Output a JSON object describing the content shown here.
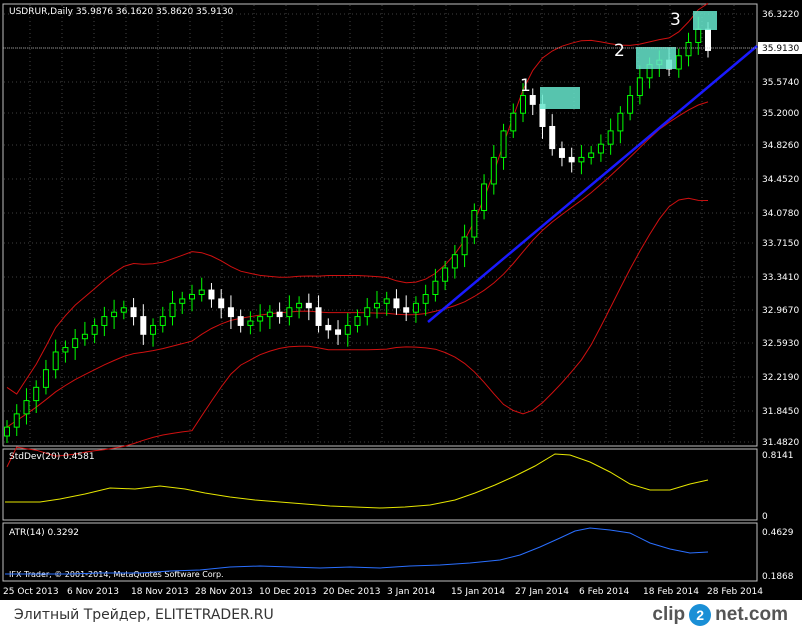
{
  "main_panel": {
    "header": "USDRUR,Daily  35.9876 36.1620 35.8620 35.9130",
    "price_ticks": [
      "36.3220",
      "35.9130",
      "35.5740",
      "35.2000",
      "34.8260",
      "34.4520",
      "34.0780",
      "33.7150",
      "33.3410",
      "32.9670",
      "32.5930",
      "32.2190",
      "31.8450",
      "31.4820"
    ],
    "current_price": "35.9130",
    "markers": [
      "1",
      "2",
      "3"
    ],
    "candle_color_up": "#00ff00",
    "candle_color_down": "#ffffff",
    "band_color": "#d01010",
    "trendline_color": "#1a1aff"
  },
  "stddev_panel": {
    "header": "StdDev(20) 0.4581",
    "ticks": [
      "0.8141",
      "0"
    ],
    "line_color": "#e6e600"
  },
  "atr_panel": {
    "header": "ATR(14) 0.3292",
    "ticks": [
      "0.4629",
      "0.1868"
    ],
    "copyright": "IFX Trader, © 2001-2014, MetaQuotes Software Corp.",
    "line_color": "#2a6fff"
  },
  "time_axis": [
    "25 Oct 2013",
    "6 Nov 2013",
    "18 Nov 2013",
    "28 Nov 2013",
    "10 Dec 2013",
    "20 Dec 2013",
    "3 Jan 2014",
    "15 Jan 2014",
    "27 Jan 2014",
    "6 Feb 2014",
    "18 Feb 2014",
    "28 Feb 2014"
  ],
  "chart_data": {
    "type": "line",
    "title": "USDRUR,Daily",
    "close_series_approx": [
      31.65,
      31.8,
      31.95,
      32.1,
      32.3,
      32.5,
      32.55,
      32.65,
      32.7,
      32.8,
      32.9,
      32.95,
      33.0,
      32.9,
      32.7,
      32.8,
      32.9,
      33.05,
      33.1,
      33.15,
      33.2,
      33.1,
      33.0,
      32.9,
      32.8,
      32.85,
      32.9,
      32.95,
      32.9,
      33.0,
      33.05,
      33.0,
      32.8,
      32.75,
      32.7,
      32.8,
      32.9,
      33.0,
      33.05,
      33.1,
      33.0,
      32.95,
      33.05,
      33.15,
      33.3,
      33.45,
      33.6,
      33.8,
      34.1,
      34.4,
      34.7,
      35.0,
      35.2,
      35.4,
      35.3,
      35.05,
      34.8,
      34.7,
      34.65,
      34.7,
      34.75,
      34.85,
      35.0,
      35.2,
      35.4,
      35.6,
      35.75,
      35.8,
      35.7,
      35.85,
      36.0,
      36.15,
      35.91
    ],
    "ylim": [
      31.482,
      36.322
    ]
  }
}
